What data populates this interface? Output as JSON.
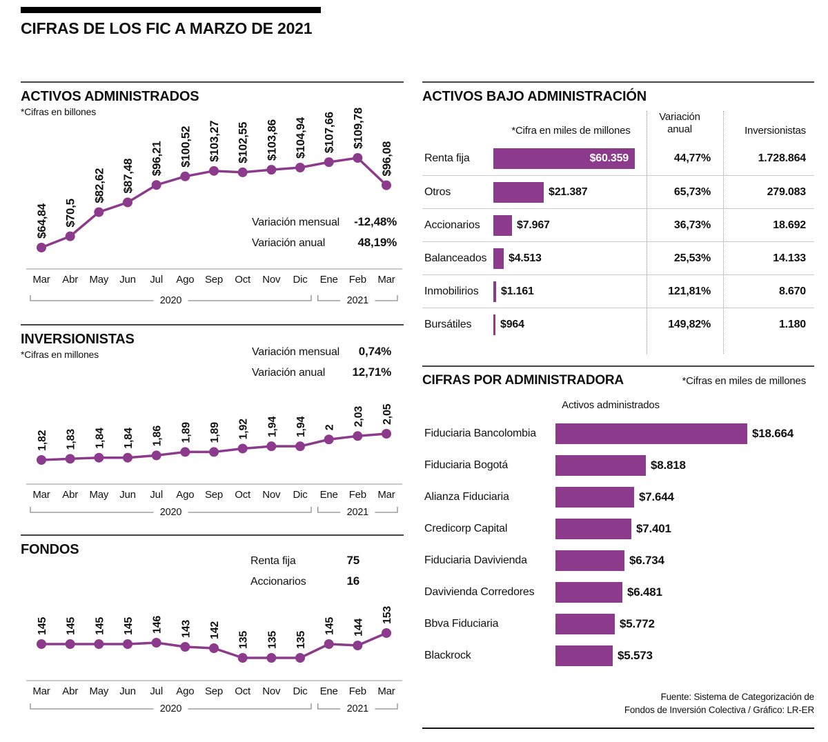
{
  "page": {
    "title": "CIFRAS DE LOS FIC A MARZO DE 2021",
    "source_line1": "Fuente: Sistema de Categorización de",
    "source_line2": "Fondos de Inversión Colectiva / Gráfico: LR-ER"
  },
  "colors": {
    "accent": "#8c3a8c",
    "bar_text": "#ffffff"
  },
  "months": [
    "Mar",
    "Abr",
    "May",
    "Jun",
    "Jul",
    "Ago",
    "Sep",
    "Oct",
    "Nov",
    "Dic",
    "Ene",
    "Feb",
    "Mar"
  ],
  "year_groups": [
    {
      "label": "2020",
      "start": 0,
      "end": 9
    },
    {
      "label": "2021",
      "start": 10,
      "end": 12
    }
  ],
  "chart_data": [
    {
      "id": "activos",
      "type": "line",
      "title": "ACTIVOS ADMINISTRADOS",
      "subtitle": "*Cifras en billones",
      "x": [
        "Mar",
        "Abr",
        "May",
        "Jun",
        "Jul",
        "Ago",
        "Sep",
        "Oct",
        "Nov",
        "Dic",
        "Ene",
        "Feb",
        "Mar"
      ],
      "values": [
        64.84,
        70.5,
        82.62,
        87.48,
        96.21,
        100.52,
        103.27,
        102.55,
        103.86,
        104.94,
        107.66,
        109.78,
        96.08
      ],
      "point_labels": [
        "$64,84",
        "$70,5",
        "$82,62",
        "$87,48",
        "$96,21",
        "$100,52",
        "$103,27",
        "$102,55",
        "$103,86",
        "$104,94",
        "$107,66",
        "$109,78",
        "$96,08"
      ],
      "stats": [
        {
          "label": "Variación mensual",
          "value": "-12,48%"
        },
        {
          "label": "Variación anual",
          "value": "48,19%"
        }
      ]
    },
    {
      "id": "inversionistas",
      "type": "line",
      "title": "INVERSIONISTAS",
      "subtitle": "*Cifras en millones",
      "x": [
        "Mar",
        "Abr",
        "May",
        "Jun",
        "Jul",
        "Ago",
        "Sep",
        "Oct",
        "Nov",
        "Dic",
        "Ene",
        "Feb",
        "Mar"
      ],
      "values": [
        1.82,
        1.83,
        1.84,
        1.84,
        1.86,
        1.89,
        1.89,
        1.92,
        1.94,
        1.94,
        2,
        2.03,
        2.05
      ],
      "point_labels": [
        "1,82",
        "1,83",
        "1,84",
        "1,84",
        "1,86",
        "1,89",
        "1,89",
        "1,92",
        "1,94",
        "1,94",
        "2",
        "2,03",
        "2,05"
      ],
      "stats": [
        {
          "label": "Variación mensual",
          "value": "0,74%"
        },
        {
          "label": "Variación anual",
          "value": "12,71%"
        }
      ]
    },
    {
      "id": "fondos",
      "type": "line",
      "title": "FONDOS",
      "x": [
        "Mar",
        "Abr",
        "May",
        "Jun",
        "Jul",
        "Ago",
        "Sep",
        "Oct",
        "Nov",
        "Dic",
        "Ene",
        "Feb",
        "Mar"
      ],
      "values": [
        145,
        145,
        145,
        145,
        146,
        143,
        142,
        135,
        135,
        135,
        145,
        144,
        153
      ],
      "point_labels": [
        "145",
        "145",
        "145",
        "145",
        "146",
        "143",
        "142",
        "135",
        "135",
        "135",
        "145",
        "144",
        "153"
      ],
      "stats": [
        {
          "label": "Renta fija",
          "value": "75"
        },
        {
          "label": "Accionarios",
          "value": "16"
        }
      ]
    },
    {
      "id": "activos_bajo_administracion",
      "type": "bar",
      "title": "ACTIVOS BAJO ADMINISTRACIÓN",
      "col_headers": {
        "bar": "*Cifra en miles de millones",
        "variacion": "Variación anual",
        "inversionistas": "Inversionistas"
      },
      "rows": [
        {
          "label": "Renta fija",
          "value": 60359,
          "value_label": "$60.359",
          "variacion": "44,77%",
          "inversionistas": "1.728.864"
        },
        {
          "label": "Otros",
          "value": 21387,
          "value_label": "$21.387",
          "variacion": "65,73%",
          "inversionistas": "279.083"
        },
        {
          "label": "Accionarios",
          "value": 7967,
          "value_label": "$7.967",
          "variacion": "36,73%",
          "inversionistas": "18.692"
        },
        {
          "label": "Balanceados",
          "value": 4513,
          "value_label": "$4.513",
          "variacion": "25,53%",
          "inversionistas": "14.133"
        },
        {
          "label": "Inmobilirios",
          "value": 1161,
          "value_label": "$1.161",
          "variacion": "121,81%",
          "inversionistas": "8.670"
        },
        {
          "label": "Bursátiles",
          "value": 964,
          "value_label": "$964",
          "variacion": "149,82%",
          "inversionistas": "1.180"
        }
      ]
    },
    {
      "id": "administradoras",
      "type": "bar",
      "title": "CIFRAS POR ADMINISTRADORA",
      "subtitle": "*Cifras en miles de millones",
      "col_header": "Activos administrados",
      "rows": [
        {
          "label": "Fiduciaria Bancolombia",
          "value": 18664,
          "value_label": "$18.664"
        },
        {
          "label": "Fiduciaria Bogotá",
          "value": 8818,
          "value_label": "$8.818"
        },
        {
          "label": "Alianza Fiduciaria",
          "value": 7644,
          "value_label": "$7.644"
        },
        {
          "label": "Credicorp Capital",
          "value": 7401,
          "value_label": "$7.401"
        },
        {
          "label": "Fiduciaria Davivienda",
          "value": 6734,
          "value_label": "$6.734"
        },
        {
          "label": "Davivienda Corredores",
          "value": 6481,
          "value_label": "$6.481"
        },
        {
          "label": "Bbva Fiduciaria",
          "value": 5772,
          "value_label": "$5.772"
        },
        {
          "label": "Blackrock",
          "value": 5573,
          "value_label": "$5.573"
        }
      ]
    }
  ]
}
